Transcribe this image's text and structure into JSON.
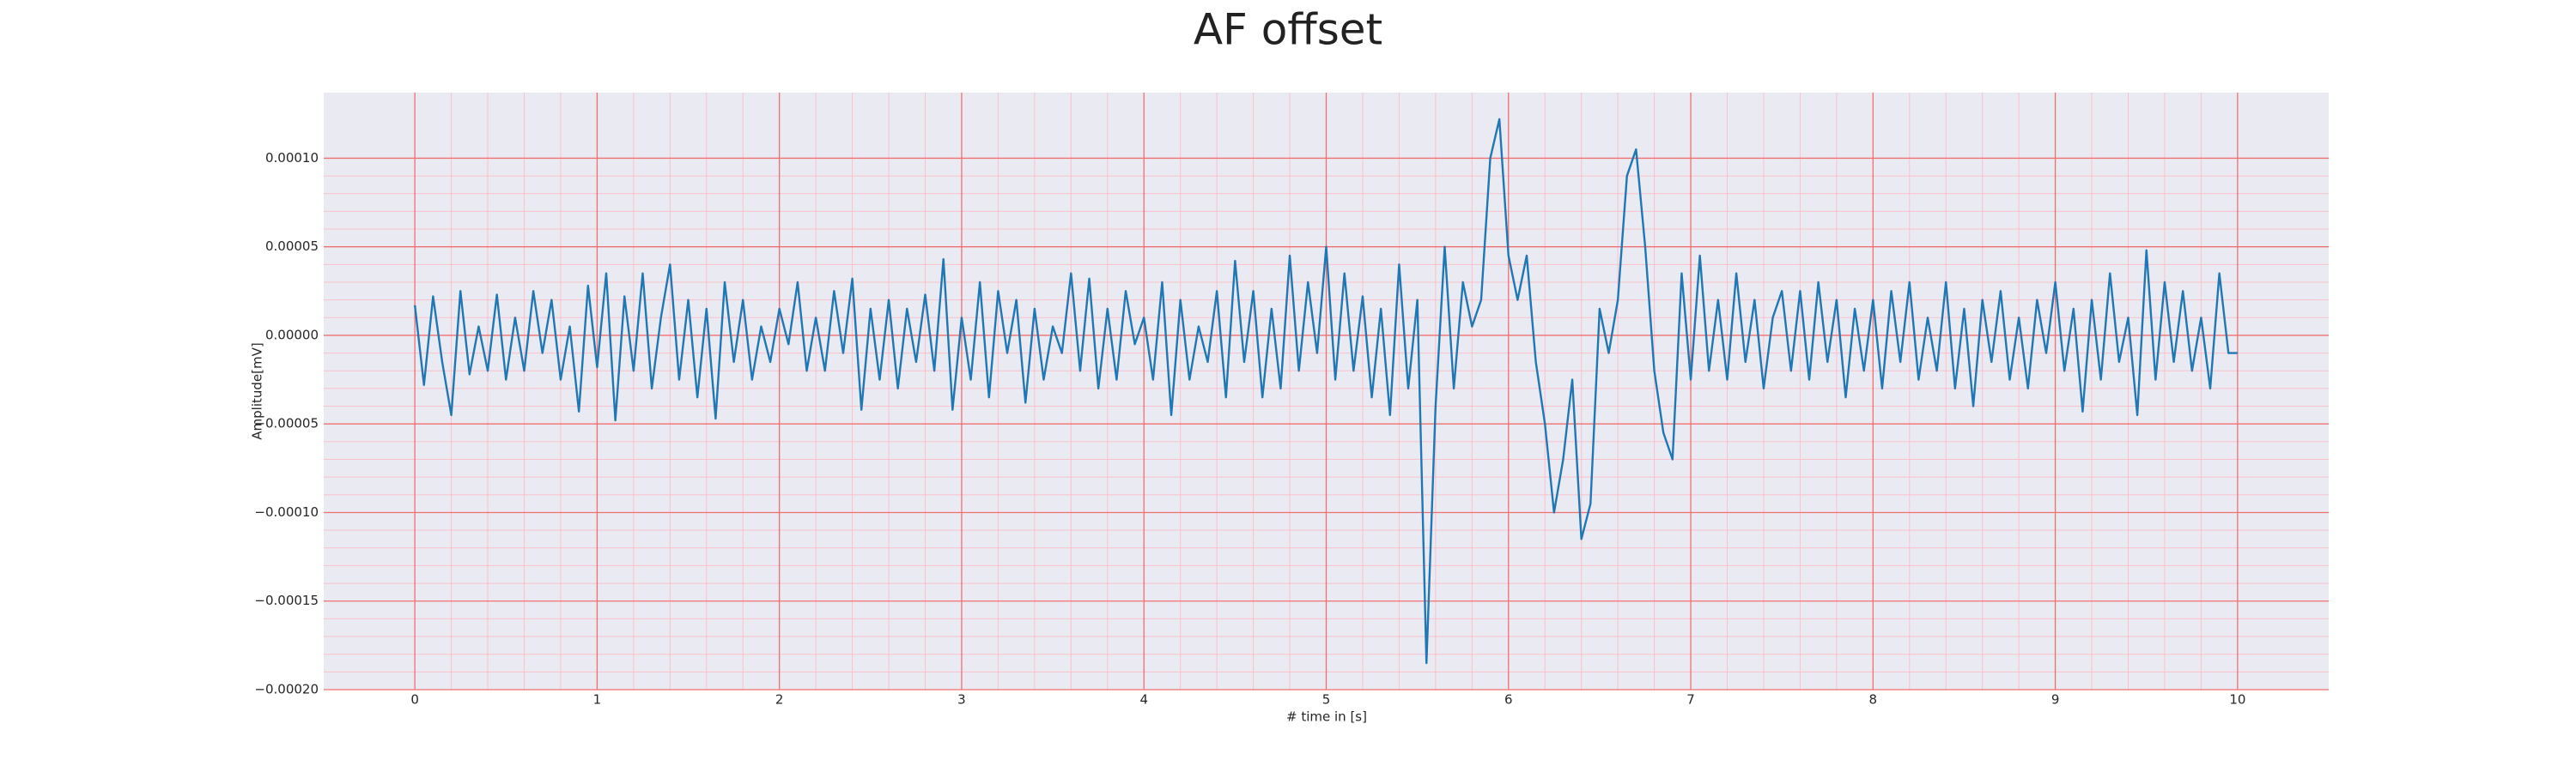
{
  "chart_data": {
    "type": "line",
    "title": "AF offset",
    "xlabel": "# time in [s]",
    "ylabel": "Amplitude[mV]",
    "color": "#1f77b4",
    "grid": true,
    "minor_grid": true,
    "xlim": [
      -0.5,
      10.5
    ],
    "ylim": [
      -0.0002,
      0.000137
    ],
    "xticks": [
      0,
      1,
      2,
      3,
      4,
      5,
      6,
      7,
      8,
      9,
      10
    ],
    "yticks": [
      {
        "value": 0.0001,
        "label": "0.00010"
      },
      {
        "value": 5e-05,
        "label": "0.00005"
      },
      {
        "value": 0,
        "label": "0.00000"
      },
      {
        "value": -5e-05,
        "label": "−0.00005"
      },
      {
        "value": -0.0001,
        "label": "−0.00010"
      },
      {
        "value": -0.00015,
        "label": "−0.00015"
      },
      {
        "value": -0.0002,
        "label": "−0.00020"
      }
    ],
    "x": [
      0,
      0.05,
      0.1,
      0.15,
      0.2,
      0.25,
      0.3,
      0.35,
      0.4,
      0.45,
      0.5,
      0.55,
      0.6,
      0.65,
      0.7,
      0.75,
      0.8,
      0.85,
      0.9,
      0.95,
      1,
      1.05,
      1.1,
      1.15,
      1.2,
      1.25,
      1.3,
      1.35,
      1.4,
      1.45,
      1.5,
      1.55,
      1.6,
      1.65,
      1.7,
      1.75,
      1.8,
      1.85,
      1.9,
      1.95,
      2,
      2.05,
      2.1,
      2.15,
      2.2,
      2.25,
      2.3,
      2.35,
      2.4,
      2.45,
      2.5,
      2.55,
      2.6,
      2.65,
      2.7,
      2.75,
      2.8,
      2.85,
      2.9,
      2.95,
      3,
      3.05,
      3.1,
      3.15,
      3.2,
      3.25,
      3.3,
      3.35,
      3.4,
      3.45,
      3.5,
      3.55,
      3.6,
      3.65,
      3.7,
      3.75,
      3.8,
      3.85,
      3.9,
      3.95,
      4,
      4.05,
      4.1,
      4.15,
      4.2,
      4.25,
      4.3,
      4.35,
      4.4,
      4.45,
      4.5,
      4.55,
      4.6,
      4.65,
      4.7,
      4.75,
      4.8,
      4.85,
      4.9,
      4.95,
      5,
      5.05,
      5.1,
      5.15,
      5.2,
      5.25,
      5.3,
      5.35,
      5.4,
      5.45,
      5.5,
      5.55,
      5.6,
      5.65,
      5.7,
      5.75,
      5.8,
      5.85,
      5.9,
      5.95,
      6,
      6.05,
      6.1,
      6.15,
      6.2,
      6.25,
      6.3,
      6.35,
      6.4,
      6.45,
      6.5,
      6.55,
      6.6,
      6.65,
      6.7,
      6.75,
      6.8,
      6.85,
      6.9,
      6.95,
      7,
      7.05,
      7.1,
      7.15,
      7.2,
      7.25,
      7.3,
      7.35,
      7.4,
      7.45,
      7.5,
      7.55,
      7.6,
      7.65,
      7.7,
      7.75,
      7.8,
      7.85,
      7.9,
      7.95,
      8,
      8.05,
      8.1,
      8.15,
      8.2,
      8.25,
      8.3,
      8.35,
      8.4,
      8.45,
      8.5,
      8.55,
      8.6,
      8.65,
      8.7,
      8.75,
      8.8,
      8.85,
      8.9,
      8.95,
      9,
      9.05,
      9.1,
      9.15,
      9.2,
      9.25,
      9.3,
      9.35,
      9.4,
      9.45,
      9.5,
      9.55,
      9.6,
      9.65,
      9.7,
      9.75,
      9.8,
      9.85,
      9.9,
      9.95,
      10
    ],
    "values": [
      1.7e-05,
      -2.8e-05,
      2.2e-05,
      -1.5e-05,
      -4.5e-05,
      2.5e-05,
      -2.2e-05,
      5e-06,
      -2e-05,
      2.3e-05,
      -2.5e-05,
      1e-05,
      -2e-05,
      2.5e-05,
      -1e-05,
      2e-05,
      -2.5e-05,
      5e-06,
      -4.3e-05,
      2.8e-05,
      -1.8e-05,
      3.5e-05,
      -4.8e-05,
      2.2e-05,
      -2e-05,
      3.5e-05,
      -3e-05,
      1e-05,
      4e-05,
      -2.5e-05,
      2e-05,
      -3.5e-05,
      1.5e-05,
      -4.7e-05,
      3e-05,
      -1.5e-05,
      2e-05,
      -2.5e-05,
      5e-06,
      -1.5e-05,
      1.5e-05,
      -5e-06,
      3e-05,
      -2e-05,
      1e-05,
      -2e-05,
      2.5e-05,
      -1e-05,
      3.2e-05,
      -4.2e-05,
      1.5e-05,
      -2.5e-05,
      2e-05,
      -3e-05,
      1.5e-05,
      -1.5e-05,
      2.3e-05,
      -2e-05,
      4.3e-05,
      -4.2e-05,
      1e-05,
      -2.5e-05,
      3e-05,
      -3.5e-05,
      2.5e-05,
      -1e-05,
      2e-05,
      -3.8e-05,
      1.5e-05,
      -2.5e-05,
      5e-06,
      -1e-05,
      3.5e-05,
      -2e-05,
      3.2e-05,
      -3e-05,
      1.5e-05,
      -2.5e-05,
      2.5e-05,
      -5e-06,
      1e-05,
      -2.5e-05,
      3e-05,
      -4.5e-05,
      2e-05,
      -2.5e-05,
      5e-06,
      -1.5e-05,
      2.5e-05,
      -3.5e-05,
      4.2e-05,
      -1.5e-05,
      2.5e-05,
      -3.5e-05,
      1.5e-05,
      -3e-05,
      4.5e-05,
      -2e-05,
      3e-05,
      -1e-05,
      5e-05,
      -2.5e-05,
      3.5e-05,
      -2e-05,
      2.2e-05,
      -3.5e-05,
      1.5e-05,
      -4.5e-05,
      4e-05,
      -3e-05,
      2e-05,
      -0.000185,
      -4e-05,
      5e-05,
      -3e-05,
      3e-05,
      5e-06,
      2e-05,
      0.0001,
      0.000122,
      4.5e-05,
      2e-05,
      4.5e-05,
      -1.5e-05,
      -5e-05,
      -0.0001,
      -7e-05,
      -2.5e-05,
      -0.000115,
      -9.5e-05,
      1.5e-05,
      -1e-05,
      2e-05,
      9e-05,
      0.000105,
      5e-05,
      -2e-05,
      -5.5e-05,
      -7e-05,
      3.5e-05,
      -2.5e-05,
      4.5e-05,
      -2e-05,
      2e-05,
      -2.5e-05,
      3.5e-05,
      -1.5e-05,
      2e-05,
      -3e-05,
      1e-05,
      2.5e-05,
      -2e-05,
      2.5e-05,
      -2.5e-05,
      3e-05,
      -1.5e-05,
      2e-05,
      -3.5e-05,
      1.5e-05,
      -2e-05,
      2e-05,
      -3e-05,
      2.5e-05,
      -1.5e-05,
      3e-05,
      -2.5e-05,
      1e-05,
      -2e-05,
      3e-05,
      -3e-05,
      1.5e-05,
      -4e-05,
      2e-05,
      -1.5e-05,
      2.5e-05,
      -2.5e-05,
      1e-05,
      -3e-05,
      2e-05,
      -1e-05,
      3e-05,
      -2e-05,
      1.5e-05,
      -4.3e-05,
      2e-05,
      -2.5e-05,
      3.5e-05,
      -1.5e-05,
      1e-05,
      -4.5e-05,
      4.8e-05,
      -2.5e-05,
      3e-05,
      -1.5e-05,
      2.5e-05,
      -2e-05,
      1e-05,
      -3e-05,
      3.5e-05,
      -1e-05,
      -1e-05
    ]
  }
}
